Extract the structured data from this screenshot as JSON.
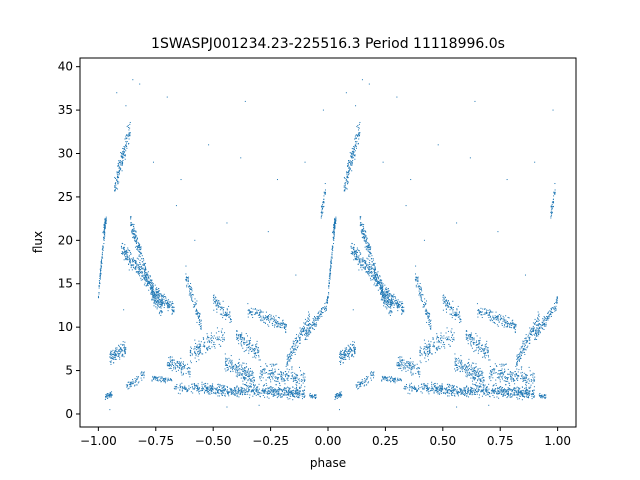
{
  "chart_data": {
    "type": "scatter",
    "title": "1SWASPJ001234.23-225516.3 Period 11118996.0s",
    "xlabel": "phase",
    "ylabel": "flux",
    "xlim": [
      -1.08,
      1.08
    ],
    "ylim": [
      -1.5,
      41.0
    ],
    "x_ticks": [
      -1.0,
      -0.75,
      -0.5,
      -0.25,
      0.0,
      0.25,
      0.5,
      0.75,
      1.0
    ],
    "x_tick_labels": [
      "−1.00",
      "−0.75",
      "−0.50",
      "−0.25",
      "0.00",
      "0.25",
      "0.50",
      "0.75",
      "1.00"
    ],
    "y_ticks": [
      0,
      5,
      10,
      15,
      20,
      25,
      30,
      35,
      40
    ],
    "y_tick_labels": [
      "0",
      "5",
      "10",
      "15",
      "20",
      "25",
      "30",
      "35",
      "40"
    ],
    "grid": false,
    "marker_color": "#1f77b4",
    "series": [
      {
        "segments": [
          {
            "x0": 0.0,
            "x1": 0.03,
            "y0": 13.5,
            "y1": 22.0,
            "spread": 1.2,
            "n": 90
          },
          {
            "x0": 0.02,
            "x1": 0.035,
            "y0": 21.0,
            "y1": 22.5,
            "spread": 0.8,
            "n": 40
          },
          {
            "x0": 0.07,
            "x1": 0.14,
            "y0": 26.0,
            "y1": 33.0,
            "spread": 1.8,
            "n": 150
          },
          {
            "x0": 0.1,
            "x1": 0.2,
            "y0": 19.0,
            "y1": 16.0,
            "spread": 1.5,
            "n": 170
          },
          {
            "x0": 0.14,
            "x1": 0.25,
            "y0": 22.0,
            "y1": 13.0,
            "spread": 1.5,
            "n": 200
          },
          {
            "x0": 0.2,
            "x1": 0.28,
            "y0": 16.0,
            "y1": 12.0,
            "spread": 1.6,
            "n": 160
          },
          {
            "x0": 0.25,
            "x1": 0.33,
            "y0": 14.0,
            "y1": 12.0,
            "spread": 1.2,
            "n": 120
          },
          {
            "x0": 0.05,
            "x1": 0.12,
            "y0": 6.5,
            "y1": 7.5,
            "spread": 1.2,
            "n": 120
          },
          {
            "x0": 0.03,
            "x1": 0.06,
            "y0": 2.0,
            "y1": 2.3,
            "spread": 0.5,
            "n": 40
          },
          {
            "x0": 0.12,
            "x1": 0.2,
            "y0": 3.0,
            "y1": 4.5,
            "spread": 0.8,
            "n": 60
          },
          {
            "x0": 0.23,
            "x1": 0.32,
            "y0": 4.0,
            "y1": 4.0,
            "spread": 0.6,
            "n": 60
          },
          {
            "x0": 0.3,
            "x1": 0.4,
            "y0": 6.0,
            "y1": 5.0,
            "spread": 1.2,
            "n": 110
          },
          {
            "x0": 0.33,
            "x1": 0.45,
            "y0": 3.0,
            "y1": 3.0,
            "spread": 0.8,
            "n": 90
          },
          {
            "x0": 0.38,
            "x1": 0.45,
            "y0": 16.0,
            "y1": 10.0,
            "spread": 1.5,
            "n": 100
          },
          {
            "x0": 0.4,
            "x1": 0.55,
            "y0": 7.0,
            "y1": 9.0,
            "spread": 1.5,
            "n": 140
          },
          {
            "x0": 0.45,
            "x1": 0.62,
            "y0": 3.0,
            "y1": 2.5,
            "spread": 0.9,
            "n": 220
          },
          {
            "x0": 0.5,
            "x1": 0.58,
            "y0": 13.0,
            "y1": 11.0,
            "spread": 1.2,
            "n": 90
          },
          {
            "x0": 0.55,
            "x1": 0.68,
            "y0": 6.0,
            "y1": 4.0,
            "spread": 1.5,
            "n": 180
          },
          {
            "x0": 0.6,
            "x1": 0.7,
            "y0": 9.0,
            "y1": 7.0,
            "spread": 1.5,
            "n": 120
          },
          {
            "x0": 0.62,
            "x1": 0.9,
            "y0": 2.8,
            "y1": 2.4,
            "spread": 1.0,
            "n": 380
          },
          {
            "x0": 0.65,
            "x1": 0.82,
            "y0": 12.0,
            "y1": 10.0,
            "spread": 1.0,
            "n": 160
          },
          {
            "x0": 0.7,
            "x1": 0.9,
            "y0": 5.0,
            "y1": 4.0,
            "spread": 1.5,
            "n": 200
          },
          {
            "x0": 0.82,
            "x1": 0.92,
            "y0": 6.0,
            "y1": 11.0,
            "spread": 1.2,
            "n": 140
          },
          {
            "x0": 0.9,
            "x1": 0.99,
            "y0": 9.0,
            "y1": 12.5,
            "spread": 1.0,
            "n": 110
          },
          {
            "x0": 0.92,
            "x1": 0.95,
            "y0": 2.0,
            "y1": 2.0,
            "spread": 0.6,
            "n": 30
          },
          {
            "x0": 0.97,
            "x1": 0.99,
            "y0": 23.0,
            "y1": 26.0,
            "spread": 1.2,
            "n": 40
          },
          {
            "x0": 0.99,
            "x1": 1.0,
            "y0": 12.0,
            "y1": 13.5,
            "spread": 0.8,
            "n": 20
          }
        ],
        "outliers": [
          [
            0.08,
            37.0
          ],
          [
            0.12,
            35.5
          ],
          [
            0.18,
            38.0
          ],
          [
            0.24,
            29.0
          ],
          [
            0.34,
            24.0
          ],
          [
            0.36,
            27.0
          ],
          [
            0.48,
            31.0
          ],
          [
            0.64,
            36.0
          ],
          [
            0.78,
            27.0
          ],
          [
            0.9,
            29.0
          ],
          [
            0.98,
            35.0
          ],
          [
            0.3,
            36.5
          ],
          [
            0.62,
            29.5
          ],
          [
            0.15,
            38.5
          ],
          [
            0.42,
            20.0
          ],
          [
            0.56,
            22.0
          ],
          [
            0.74,
            21.0
          ],
          [
            0.86,
            16.0
          ],
          [
            0.11,
            12.0
          ],
          [
            0.05,
            0.5
          ],
          [
            0.56,
            0.8
          ],
          [
            0.7,
            1.0
          ]
        ]
      }
    ]
  }
}
